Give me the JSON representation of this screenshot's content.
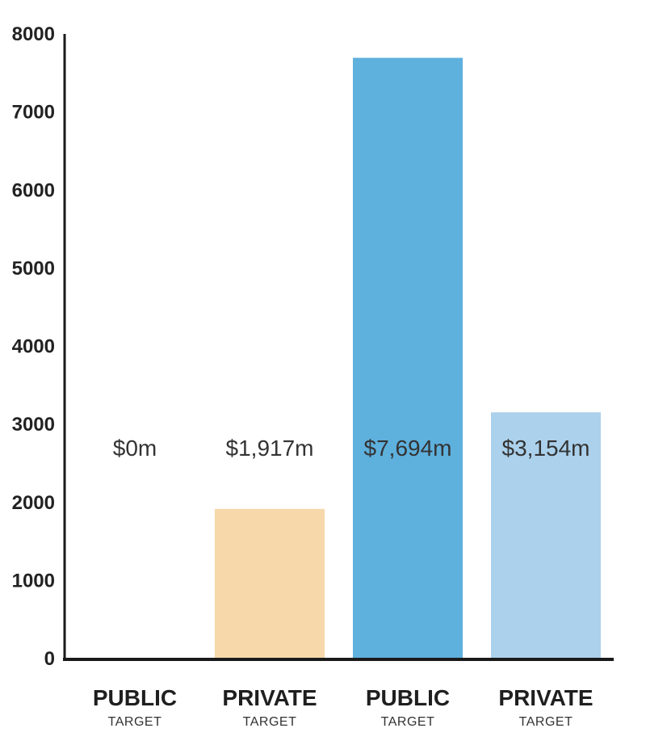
{
  "chart_data": {
    "type": "bar",
    "title": "",
    "xlabel": "",
    "ylabel": "",
    "ylim": [
      0,
      8000
    ],
    "yticks": [
      0,
      1000,
      2000,
      3000,
      4000,
      5000,
      6000,
      7000,
      8000
    ],
    "grid": false,
    "legend": "none",
    "categories": [
      {
        "main": "PUBLIC",
        "sub": "TARGET"
      },
      {
        "main": "PRIVATE",
        "sub": "TARGET"
      },
      {
        "main": "PUBLIC",
        "sub": "TARGET"
      },
      {
        "main": "PRIVATE",
        "sub": "TARGET"
      }
    ],
    "values": [
      0,
      1917,
      7694,
      3154
    ],
    "value_labels": [
      "$0m",
      "$1,917m",
      "$7,694m",
      "$3,154m"
    ],
    "colors": [
      "#ffffff",
      "#f6d8ab",
      "#5eb0dd",
      "#abd1ec"
    ]
  }
}
